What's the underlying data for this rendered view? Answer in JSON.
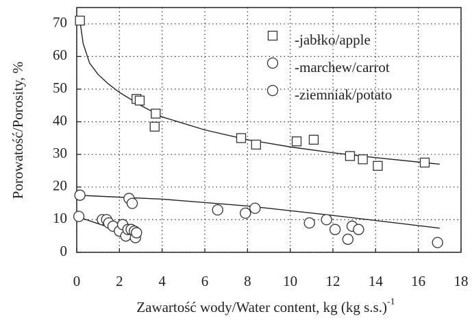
{
  "chart_data": {
    "type": "scatter",
    "x_label": "Zawartość wody/Water content, kg (kg s.s.)",
    "x_label_superscript": "-1",
    "y_label": "Porowatość/Porosity, %",
    "xlim": [
      0,
      18
    ],
    "xticks": [
      0,
      2,
      4,
      6,
      8,
      10,
      12,
      14,
      16,
      18
    ],
    "ylim": [
      0,
      75
    ],
    "yticks": [
      0,
      10,
      20,
      30,
      40,
      50,
      60,
      70
    ],
    "grid": true,
    "legend": "upper right",
    "series": [
      {
        "name": "-jabłko/apple",
        "marker": "square",
        "color": "#333333",
        "x": [
          0.15,
          2.8,
          2.95,
          3.7,
          3.65,
          7.7,
          8.4,
          10.3,
          11.1,
          12.8,
          13.4,
          14.1,
          16.3
        ],
        "values": [
          71,
          47,
          46.5,
          42.5,
          38.5,
          35,
          33,
          34,
          34.5,
          29.5,
          28.5,
          26.5,
          27.5
        ],
        "fit": {
          "x": [
            0.15,
            0.3,
            0.6,
            1,
            1.5,
            2,
            3,
            4,
            6,
            8,
            10,
            12,
            14,
            17
          ],
          "y": [
            71,
            64,
            58,
            54.5,
            51.5,
            49,
            45,
            41.5,
            37.5,
            34.5,
            32.3,
            30.5,
            29,
            27
          ]
        }
      },
      {
        "name": "-marchew/carrot",
        "marker": "circle",
        "color": "#333333",
        "x": [
          0.15,
          2.45,
          2.6,
          6.6,
          7.9,
          8.35,
          10.9,
          11.7,
          12.1,
          12.7,
          12.9,
          13.2,
          16.9
        ],
        "values": [
          17.5,
          16.5,
          15,
          13,
          12,
          13.5,
          9,
          10,
          7,
          4,
          8,
          7,
          3
        ],
        "fit": {
          "x": [
            0,
            4,
            8,
            12,
            17
          ],
          "y": [
            17.5,
            16.3,
            14.2,
            11.3,
            7.4
          ]
        }
      },
      {
        "name": "-ziemniak/potato",
        "marker": "circle",
        "color": "#333333",
        "x": [
          0.1,
          1.2,
          1.4,
          1.5,
          1.7,
          2.0,
          2.15,
          2.3,
          2.4,
          2.55,
          2.7,
          2.75,
          2.8
        ],
        "values": [
          11,
          10,
          10,
          9,
          8,
          6.5,
          8.5,
          5,
          7,
          7,
          6.5,
          4.5,
          6
        ],
        "fit": {
          "x": [
            0,
            2.8
          ],
          "y": [
            11,
            4.8
          ]
        }
      }
    ]
  }
}
